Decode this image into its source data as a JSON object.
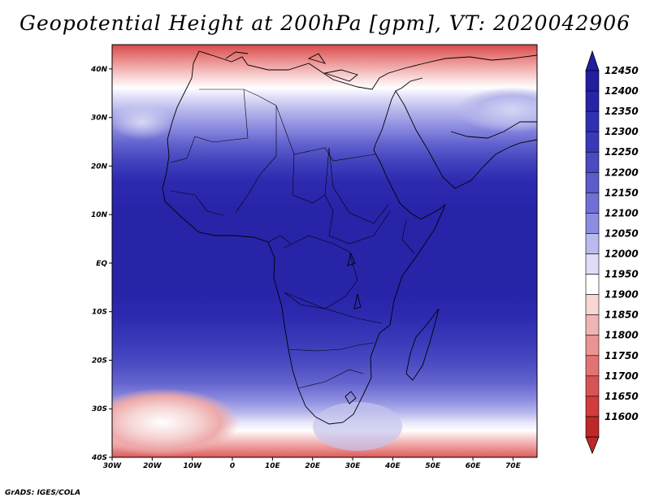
{
  "title": "Geopotential Height at 200hPa [gpm], VT: 2020042906",
  "credit": "GrADS: IGES/COLA",
  "map": {
    "projection": "latlon",
    "lon_range": [
      -30,
      76
    ],
    "lat_range": [
      -40,
      45
    ],
    "lon_ticks": [
      {
        "lon": -30,
        "label": "30W"
      },
      {
        "lon": -20,
        "label": "20W"
      },
      {
        "lon": -10,
        "label": "10W"
      },
      {
        "lon": 0,
        "label": "0"
      },
      {
        "lon": 10,
        "label": "10E"
      },
      {
        "lon": 20,
        "label": "20E"
      },
      {
        "lon": 30,
        "label": "30E"
      },
      {
        "lon": 40,
        "label": "40E"
      },
      {
        "lon": 50,
        "label": "50E"
      },
      {
        "lon": 60,
        "label": "60E"
      },
      {
        "lon": 70,
        "label": "70E"
      }
    ],
    "lat_ticks": [
      {
        "lat": 40,
        "label": "40N"
      },
      {
        "lat": 30,
        "label": "30N"
      },
      {
        "lat": 20,
        "label": "20N"
      },
      {
        "lat": 10,
        "label": "10N"
      },
      {
        "lat": 0,
        "label": "EQ"
      },
      {
        "lat": -10,
        "label": "10S"
      },
      {
        "lat": -20,
        "label": "20S"
      },
      {
        "lat": -30,
        "label": "30S"
      },
      {
        "lat": -40,
        "label": "40S"
      }
    ]
  },
  "colorbar": {
    "levels": [
      {
        "label": "12450",
        "color": "#211ea0"
      },
      {
        "label": "12400",
        "color": "#2724a8"
      },
      {
        "label": "12350",
        "color": "#3030b2"
      },
      {
        "label": "12300",
        "color": "#3a3ab9"
      },
      {
        "label": "12250",
        "color": "#4a4ac2"
      },
      {
        "label": "12200",
        "color": "#5c5ccb"
      },
      {
        "label": "12150",
        "color": "#7070d4"
      },
      {
        "label": "12100",
        "color": "#8c8ce0"
      },
      {
        "label": "12050",
        "color": "#babaee"
      },
      {
        "label": "12000",
        "color": "#dedcf7"
      },
      {
        "label": "11950",
        "color": "#ffffff"
      },
      {
        "label": "11900",
        "color": "#f8d6d6"
      },
      {
        "label": "11850",
        "color": "#f1b4b4"
      },
      {
        "label": "11800",
        "color": "#ea9494"
      },
      {
        "label": "11750",
        "color": "#e07474"
      },
      {
        "label": "11700",
        "color": "#d85454"
      },
      {
        "label": "11650",
        "color": "#d23c3c"
      },
      {
        "label": "11600",
        "color": "#c02828"
      }
    ]
  }
}
